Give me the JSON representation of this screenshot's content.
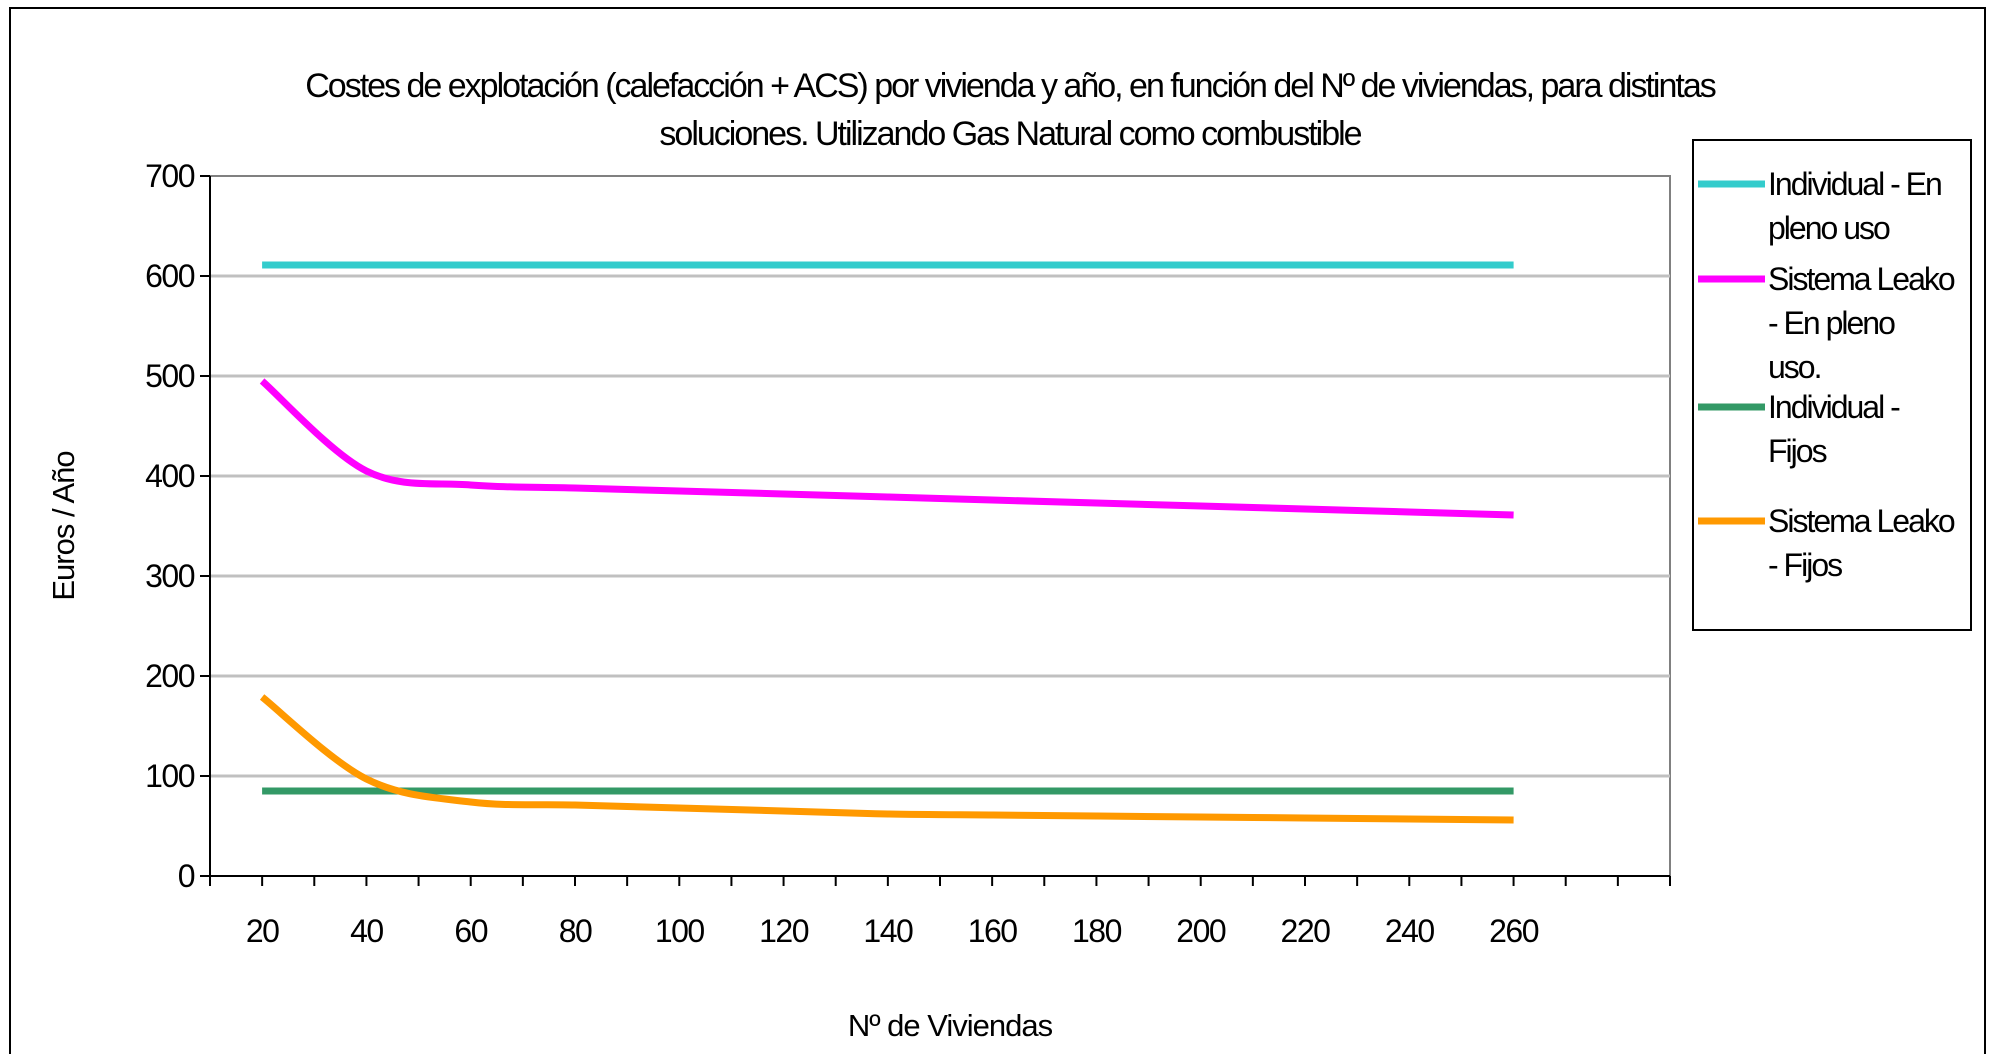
{
  "chart_data": {
    "type": "line",
    "title": "Costes de explotación (calefacción + ACS) por vivienda y año, en función del Nº de viviendas, para distintas soluciones. Utilizando Gas Natural como combustible",
    "title_lines": [
      "Costes de explotación (calefacción + ACS) por vivienda y año, en función del Nº de viviendas, para distintas",
      "soluciones. Utilizando Gas Natural como combustible"
    ],
    "xlabel": "Nº de Viviendas",
    "ylabel": "Euros / Año",
    "x_ticks": [
      20,
      40,
      60,
      80,
      100,
      120,
      140,
      160,
      180,
      200,
      220,
      240,
      260
    ],
    "x_range": [
      10,
      290
    ],
    "y_ticks": [
      0,
      100,
      200,
      300,
      400,
      500,
      600,
      700
    ],
    "ylim": [
      0,
      700
    ],
    "grid": "horizontal",
    "legend_position": "right",
    "series": [
      {
        "name": "Individual - En pleno uso",
        "legend_lines": [
          "Individual - En",
          "pleno uso"
        ],
        "color": "#33CCCC",
        "x": [
          20,
          40,
          60,
          80,
          100,
          120,
          140,
          160,
          180,
          200,
          220,
          240,
          260
        ],
        "values": [
          611,
          611,
          611,
          611,
          611,
          611,
          611,
          611,
          611,
          611,
          611,
          611,
          611
        ]
      },
      {
        "name": "Sistema Leako - En pleno uso.",
        "legend_lines": [
          "Sistema Leako",
          "- En pleno",
          "uso."
        ],
        "color": "#FF00FF",
        "x": [
          20,
          40,
          60,
          80,
          100,
          120,
          140,
          160,
          180,
          200,
          220,
          240,
          260
        ],
        "values": [
          495,
          405,
          391,
          388,
          385,
          382,
          379,
          376,
          373,
          370,
          367,
          364,
          361
        ]
      },
      {
        "name": "Individual - Fijos",
        "legend_lines": [
          "Individual -",
          "Fijos"
        ],
        "color": "#339966",
        "x": [
          20,
          40,
          60,
          80,
          100,
          120,
          140,
          160,
          180,
          200,
          220,
          240,
          260
        ],
        "values": [
          85,
          85,
          85,
          85,
          85,
          85,
          85,
          85,
          85,
          85,
          85,
          85,
          85
        ]
      },
      {
        "name": "Sistema Leako - Fijos",
        "legend_lines": [
          "Sistema Leako",
          "- Fijos"
        ],
        "color": "#FF9900",
        "x": [
          20,
          40,
          60,
          80,
          100,
          120,
          140,
          160,
          180,
          200,
          220,
          240,
          260
        ],
        "values": [
          179,
          97,
          74,
          71,
          68,
          65,
          62,
          61,
          60,
          59,
          58,
          57,
          56
        ]
      }
    ]
  }
}
